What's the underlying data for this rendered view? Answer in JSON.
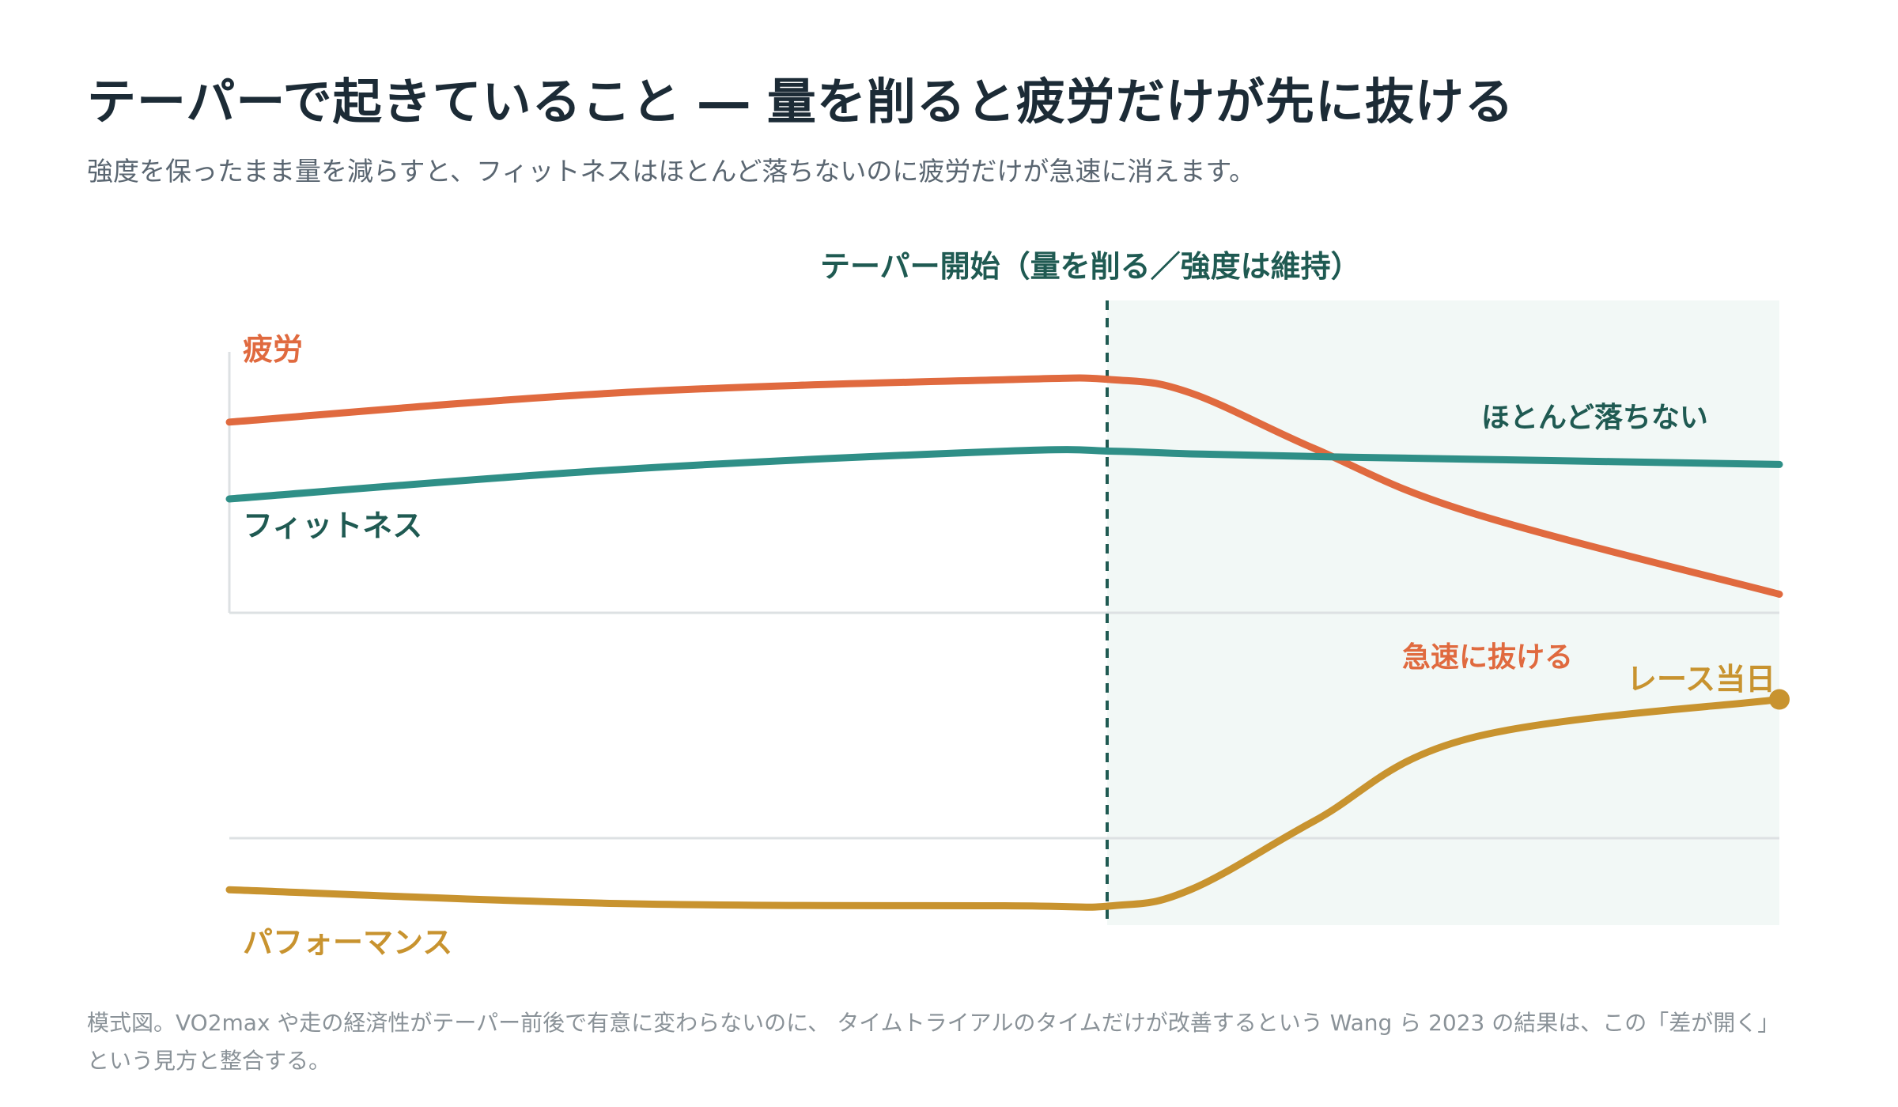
{
  "header": {
    "title": "テーパーで起きていること ― 量を削ると疲労だけが先に抜ける",
    "subtitle": "強度を保ったまま量を減らすと、フィットネスはほとんど落ちないのに疲労だけが急速に消えます。"
  },
  "caption": "模式図。VO2max や走の経済性がテーパー前後で有意に変わらないのに、 タイムトライアルのタイムだけが改善するという Wang ら 2023 の結果は、この「差が開く」という見方と整合する。",
  "colors": {
    "fatigue": "#e06a3f",
    "fitness": "#2f8f87",
    "performance": "#c8932f",
    "taper_line": "#1f5a52",
    "taper_band": "#f2f8f6",
    "axis": "#dde1e3"
  },
  "chart_data": [
    {
      "type": "line",
      "title": "",
      "xlabel": "",
      "ylabel": "",
      "x": [
        0,
        0.25,
        0.5,
        0.57,
        0.62,
        0.7,
        0.8,
        1.0
      ],
      "series": [
        {
          "name": "疲労",
          "values": [
            0.72,
            0.83,
            0.88,
            0.88,
            0.83,
            0.62,
            0.38,
            0.07
          ]
        },
        {
          "name": "フィットネス",
          "values": [
            0.43,
            0.54,
            0.61,
            0.61,
            0.6,
            0.59,
            0.58,
            0.56
          ]
        }
      ],
      "annotations": {
        "taper_start": "テーパー開始（量を削る／強度は維持）",
        "fitness_note": "ほとんど落ちない",
        "fatigue_note": "急速に抜ける"
      },
      "taper_start_x": 0.57,
      "ylim": [
        0,
        1
      ],
      "grid": false,
      "legend": "none"
    },
    {
      "type": "line",
      "title": "",
      "xlabel": "",
      "ylabel": "",
      "x": [
        0,
        0.25,
        0.5,
        0.57,
        0.62,
        0.7,
        0.8,
        1.0
      ],
      "series": [
        {
          "name": "パフォーマンス",
          "values": [
            0.12,
            0.06,
            0.05,
            0.05,
            0.12,
            0.42,
            0.78,
            0.95
          ]
        }
      ],
      "annotations": {
        "end_label": "レース当日"
      },
      "ylim": [
        0,
        1
      ],
      "grid": false,
      "legend": "none"
    }
  ]
}
